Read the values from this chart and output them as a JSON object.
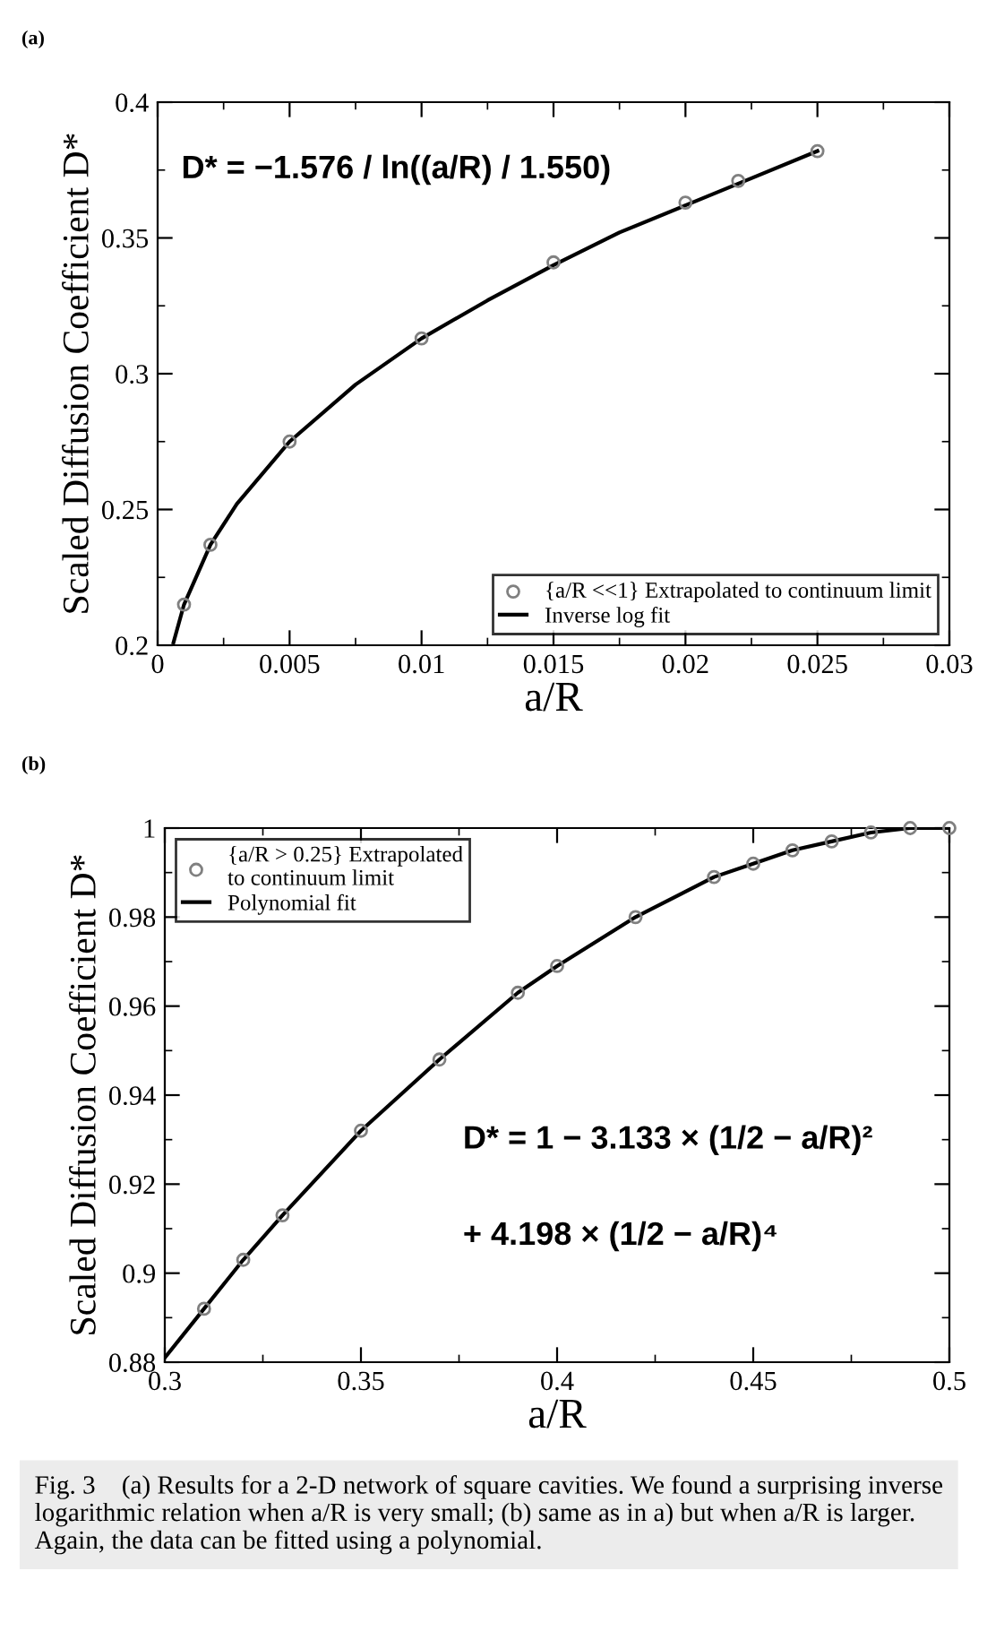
{
  "chart_data": [
    {
      "type": "scatter",
      "title": "(a)",
      "xlabel": "a/R",
      "ylabel": "Scaled Diffusion Coefficient D*",
      "xlim": [
        0,
        0.03
      ],
      "ylim": [
        0.2,
        0.4
      ],
      "xticks": [
        0,
        {
          "value": 0.0025,
          "label": null
        },
        0.005,
        {
          "value": 0.0075,
          "label": null
        },
        0.01,
        {
          "value": 0.0125,
          "label": null
        },
        0.015,
        {
          "value": 0.0175,
          "label": null
        },
        0.02,
        {
          "value": 0.0225,
          "label": null
        },
        0.025,
        {
          "value": 0.0275,
          "label": null
        },
        0.03
      ],
      "yticks": [
        0.2,
        {
          "value": 0.225,
          "label": null
        },
        0.25,
        {
          "value": 0.275,
          "label": null
        },
        0.3,
        {
          "value": 0.325,
          "label": null
        },
        0.35,
        {
          "value": 0.375,
          "label": null
        },
        0.4
      ],
      "grid": false,
      "legend": "lower right",
      "series": [
        {
          "name": "{a/R <<1} Extrapolated to continuum limit",
          "marker": "circle",
          "color": "#808080",
          "x": [
            0.001,
            0.002,
            0.005,
            0.01,
            0.015,
            0.02,
            0.022,
            0.025
          ],
          "values": [
            0.215,
            0.237,
            0.275,
            0.313,
            0.341,
            0.363,
            0.371,
            0.382
          ]
        },
        {
          "name": "Inverse log fit",
          "type": "line",
          "line_style": "solid",
          "color": "#000000",
          "x": [
            0.0006,
            0.001,
            0.002,
            0.003,
            0.005,
            0.0075,
            0.01,
            0.0125,
            0.015,
            0.0175,
            0.02,
            0.0225,
            0.025
          ],
          "values": [
            0.201,
            0.215,
            0.237,
            0.252,
            0.275,
            0.296,
            0.313,
            0.327,
            0.34,
            0.352,
            0.362,
            0.372,
            0.382
          ]
        }
      ],
      "annotations": [
        "D* = −1.576 / ln((a/R) / 1.550)"
      ]
    },
    {
      "type": "scatter",
      "title": "(b)",
      "xlabel": "a/R",
      "ylabel": "Scaled Diffusion Coefficient D*",
      "xlim": [
        0.3,
        0.5
      ],
      "ylim": [
        0.88,
        1
      ],
      "xticks": [
        0.3,
        {
          "value": 0.325,
          "label": null
        },
        0.35,
        {
          "value": 0.375,
          "label": null
        },
        0.4,
        {
          "value": 0.425,
          "label": null
        },
        0.45,
        {
          "value": 0.475,
          "label": null
        },
        0.5
      ],
      "yticks": [
        0.88,
        {
          "value": 0.89,
          "label": null
        },
        0.9,
        {
          "value": 0.91,
          "label": null
        },
        0.92,
        {
          "value": 0.93,
          "label": null
        },
        0.94,
        {
          "value": 0.95,
          "label": null
        },
        0.96,
        {
          "value": 0.97,
          "label": null
        },
        0.98,
        {
          "value": 0.99,
          "label": null
        },
        1
      ],
      "grid": false,
      "legend": "top left",
      "series": [
        {
          "name": "{a/R > 0.25} Extrapolated\nto continuum limit",
          "marker": "circle",
          "color": "#808080",
          "x": [
            0.31,
            0.32,
            0.33,
            0.35,
            0.37,
            0.39,
            0.4,
            0.42,
            0.44,
            0.45,
            0.46,
            0.47,
            0.48,
            0.49,
            0.5
          ],
          "values": [
            0.892,
            0.903,
            0.913,
            0.932,
            0.948,
            0.963,
            0.969,
            0.98,
            0.989,
            0.992,
            0.995,
            0.997,
            0.999,
            1.0,
            1.0
          ]
        },
        {
          "name": "Polynomial fit",
          "type": "line",
          "line_style": "solid",
          "color": "#000000",
          "x": [
            0.3,
            0.31,
            0.32,
            0.33,
            0.35,
            0.37,
            0.39,
            0.4,
            0.42,
            0.44,
            0.45,
            0.46,
            0.47,
            0.48,
            0.49,
            0.5
          ],
          "values": [
            0.881,
            0.892,
            0.903,
            0.913,
            0.932,
            0.948,
            0.963,
            0.969,
            0.98,
            0.989,
            0.992,
            0.995,
            0.997,
            0.999,
            1.0,
            1.0
          ]
        }
      ],
      "annotations": [
        "D* = 1 − 3.133 × (1/2 − a/R)²",
        "+ 4.198 × (1/2 − a/R)⁴",
        "Fig. 3    (a) Results for a 2-D network of square cavities. We found a surprising inverse logarithmic relation when a/R is very small; (b) same as in a) but when a/R is larger. Again, the data can be fitted using a polynomial."
      ]
    }
  ]
}
